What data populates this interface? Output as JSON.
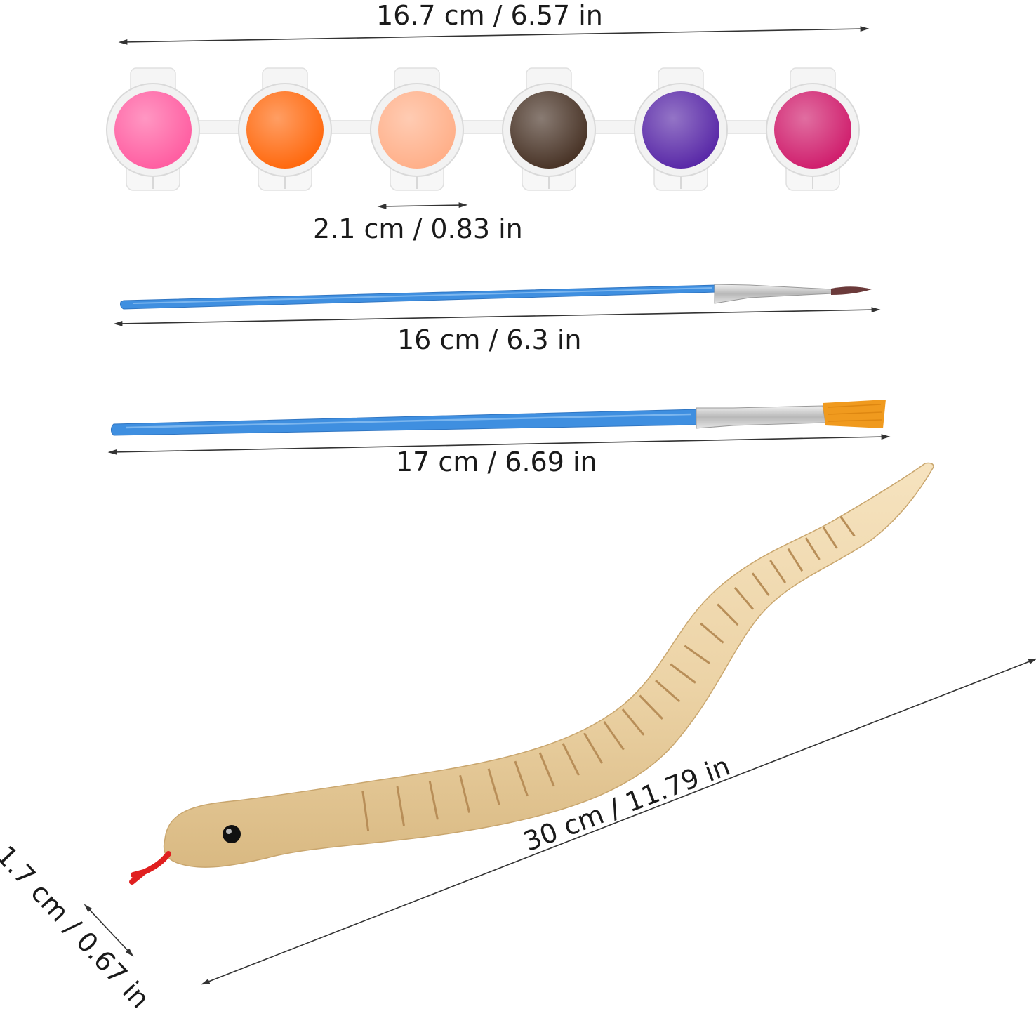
{
  "measurements": {
    "paint_strip_length": "16.7 cm / 6.57 in",
    "paint_pot_diameter": "2.1 cm / 0.83 in",
    "fine_brush_length": "16 cm / 6.3 in",
    "flat_brush_length": "17 cm / 6.69 in",
    "snake_length": "30 cm / 11.79 in",
    "snake_width": "1.7 cm / 0.67 in"
  },
  "paint_colors": [
    "#ff5fa2",
    "#ff6a10",
    "#ffb08a",
    "#4a3528",
    "#5a2aa8",
    "#d0206e"
  ],
  "colors": {
    "brush_handle": "#3f8fe0",
    "brush_ferrule": "#c8c8c8",
    "flat_bristles": "#f09a1e",
    "fine_bristles": "#6b3a3a",
    "snake_wood": "#ecd3a6",
    "snake_tongue": "#e02020"
  }
}
